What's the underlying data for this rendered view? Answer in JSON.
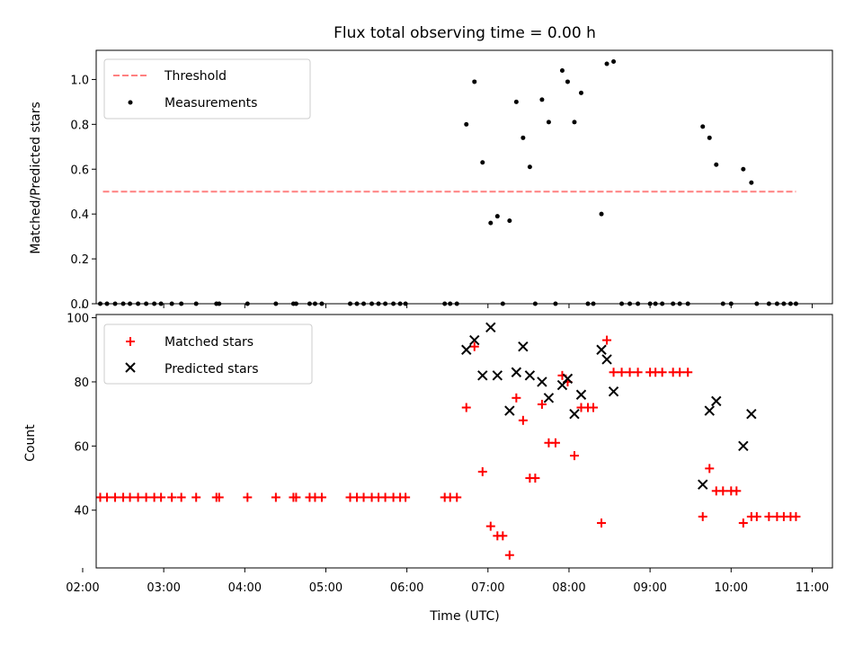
{
  "chart_data": [
    {
      "type": "scatter",
      "title": "Flux total observing time = 0.00 h",
      "xlabel": "",
      "ylabel": "Matched/Predicted stars",
      "ylim": [
        0,
        1.13
      ],
      "xlim": [
        "02:10",
        "11:15"
      ],
      "yticks": [
        "0.0",
        "0.2",
        "0.4",
        "0.6",
        "0.8",
        "1.0"
      ],
      "legend_position": "top-left",
      "colors": {
        "threshold": "#ff8080",
        "measurements": "#000000"
      },
      "threshold": {
        "name": "Threshold",
        "value": 0.5,
        "x_start": "02:15",
        "x_end": "10:48"
      },
      "measurements": {
        "name": "Measurements",
        "points": [
          [
            "02:13",
            0
          ],
          [
            "02:18",
            0
          ],
          [
            "02:24",
            0
          ],
          [
            "02:30",
            0
          ],
          [
            "02:35",
            0
          ],
          [
            "02:41",
            0
          ],
          [
            "02:47",
            0
          ],
          [
            "02:53",
            0
          ],
          [
            "02:58",
            0
          ],
          [
            "03:06",
            0
          ],
          [
            "03:13",
            0
          ],
          [
            "03:24",
            0
          ],
          [
            "03:39",
            0
          ],
          [
            "03:41",
            0
          ],
          [
            "04:02",
            0
          ],
          [
            "04:23",
            0
          ],
          [
            "04:36",
            0
          ],
          [
            "04:38",
            0
          ],
          [
            "04:48",
            0
          ],
          [
            "04:52",
            0
          ],
          [
            "04:57",
            0
          ],
          [
            "05:18",
            0
          ],
          [
            "05:23",
            0
          ],
          [
            "05:28",
            0
          ],
          [
            "05:34",
            0
          ],
          [
            "05:39",
            0
          ],
          [
            "05:44",
            0
          ],
          [
            "05:50",
            0
          ],
          [
            "05:55",
            0
          ],
          [
            "05:59",
            0
          ],
          [
            "06:28",
            0
          ],
          [
            "06:32",
            0
          ],
          [
            "06:37",
            0
          ],
          [
            "06:44",
            0.8
          ],
          [
            "06:50",
            0.99
          ],
          [
            "06:56",
            0.63
          ],
          [
            "07:02",
            0.36
          ],
          [
            "07:07",
            0.39
          ],
          [
            "07:11",
            0
          ],
          [
            "07:16",
            0.37
          ],
          [
            "07:21",
            0.9
          ],
          [
            "07:26",
            0.74
          ],
          [
            "07:31",
            0.61
          ],
          [
            "07:35",
            0
          ],
          [
            "07:40",
            0.91
          ],
          [
            "07:45",
            0.81
          ],
          [
            "07:50",
            0
          ],
          [
            "07:55",
            1.04
          ],
          [
            "07:59",
            0.99
          ],
          [
            "08:04",
            0.81
          ],
          [
            "08:09",
            0.94
          ],
          [
            "08:14",
            0
          ],
          [
            "08:18",
            0
          ],
          [
            "08:24",
            0.4
          ],
          [
            "08:28",
            1.07
          ],
          [
            "08:33",
            1.08
          ],
          [
            "08:39",
            0
          ],
          [
            "08:45",
            0
          ],
          [
            "08:51",
            0
          ],
          [
            "09:00",
            0
          ],
          [
            "09:04",
            0
          ],
          [
            "09:09",
            0
          ],
          [
            "09:17",
            0
          ],
          [
            "09:22",
            0
          ],
          [
            "09:28",
            0
          ],
          [
            "09:39",
            0.79
          ],
          [
            "09:44",
            0.74
          ],
          [
            "09:49",
            0.62
          ],
          [
            "09:54",
            0
          ],
          [
            "10:00",
            0
          ],
          [
            "10:09",
            0.6
          ],
          [
            "10:15",
            0.54
          ],
          [
            "10:19",
            0
          ],
          [
            "10:28",
            0
          ],
          [
            "10:34",
            0
          ],
          [
            "10:39",
            0
          ],
          [
            "10:44",
            0
          ],
          [
            "10:48",
            0
          ]
        ]
      }
    },
    {
      "type": "scatter",
      "title": "",
      "xlabel": "Time (UTC)",
      "ylabel": "Count",
      "ylim": [
        22,
        101
      ],
      "xlim": [
        "02:10",
        "11:15"
      ],
      "xticks": [
        "02:00",
        "03:00",
        "04:00",
        "05:00",
        "06:00",
        "07:00",
        "08:00",
        "09:00",
        "10:00",
        "11:00"
      ],
      "yticks": [
        "40",
        "60",
        "80",
        "100"
      ],
      "legend_position": "top-left",
      "colors": {
        "matched": "#ff0000",
        "predicted": "#000000"
      },
      "series": [
        {
          "name": "Matched stars",
          "points": [
            [
              "02:13",
              44
            ],
            [
              "02:18",
              44
            ],
            [
              "02:24",
              44
            ],
            [
              "02:30",
              44
            ],
            [
              "02:35",
              44
            ],
            [
              "02:41",
              44
            ],
            [
              "02:47",
              44
            ],
            [
              "02:53",
              44
            ],
            [
              "02:58",
              44
            ],
            [
              "03:06",
              44
            ],
            [
              "03:13",
              44
            ],
            [
              "03:24",
              44
            ],
            [
              "03:39",
              44
            ],
            [
              "03:41",
              44
            ],
            [
              "04:02",
              44
            ],
            [
              "04:23",
              44
            ],
            [
              "04:36",
              44
            ],
            [
              "04:38",
              44
            ],
            [
              "04:48",
              44
            ],
            [
              "04:52",
              44
            ],
            [
              "04:57",
              44
            ],
            [
              "05:18",
              44
            ],
            [
              "05:23",
              44
            ],
            [
              "05:28",
              44
            ],
            [
              "05:34",
              44
            ],
            [
              "05:39",
              44
            ],
            [
              "05:44",
              44
            ],
            [
              "05:50",
              44
            ],
            [
              "05:55",
              44
            ],
            [
              "05:59",
              44
            ],
            [
              "06:28",
              44
            ],
            [
              "06:32",
              44
            ],
            [
              "06:37",
              44
            ],
            [
              "06:44",
              72
            ],
            [
              "06:50",
              91
            ],
            [
              "06:56",
              52
            ],
            [
              "07:02",
              35
            ],
            [
              "07:07",
              32
            ],
            [
              "07:11",
              32
            ],
            [
              "07:16",
              26
            ],
            [
              "07:21",
              75
            ],
            [
              "07:26",
              68
            ],
            [
              "07:31",
              50
            ],
            [
              "07:35",
              50
            ],
            [
              "07:40",
              73
            ],
            [
              "07:45",
              61
            ],
            [
              "07:50",
              61
            ],
            [
              "07:55",
              82
            ],
            [
              "07:59",
              80
            ],
            [
              "08:04",
              57
            ],
            [
              "08:09",
              72
            ],
            [
              "08:14",
              72
            ],
            [
              "08:18",
              72
            ],
            [
              "08:24",
              36
            ],
            [
              "08:28",
              93
            ],
            [
              "08:33",
              83
            ],
            [
              "08:39",
              83
            ],
            [
              "08:45",
              83
            ],
            [
              "08:51",
              83
            ],
            [
              "09:00",
              83
            ],
            [
              "09:04",
              83
            ],
            [
              "09:09",
              83
            ],
            [
              "09:17",
              83
            ],
            [
              "09:22",
              83
            ],
            [
              "09:28",
              83
            ],
            [
              "09:39",
              38
            ],
            [
              "09:44",
              53
            ],
            [
              "09:49",
              46
            ],
            [
              "09:54",
              46
            ],
            [
              "10:00",
              46
            ],
            [
              "10:04",
              46
            ],
            [
              "10:09",
              36
            ],
            [
              "10:15",
              38
            ],
            [
              "10:19",
              38
            ],
            [
              "10:28",
              38
            ],
            [
              "10:34",
              38
            ],
            [
              "10:39",
              38
            ],
            [
              "10:44",
              38
            ],
            [
              "10:48",
              38
            ]
          ]
        },
        {
          "name": "Predicted stars",
          "points": [
            [
              "06:44",
              90
            ],
            [
              "06:50",
              93
            ],
            [
              "06:56",
              82
            ],
            [
              "07:02",
              97
            ],
            [
              "07:07",
              82
            ],
            [
              "07:16",
              71
            ],
            [
              "07:21",
              83
            ],
            [
              "07:26",
              91
            ],
            [
              "07:31",
              82
            ],
            [
              "07:40",
              80
            ],
            [
              "07:45",
              75
            ],
            [
              "07:55",
              79
            ],
            [
              "07:59",
              81
            ],
            [
              "08:04",
              70
            ],
            [
              "08:09",
              76
            ],
            [
              "08:24",
              90
            ],
            [
              "08:28",
              87
            ],
            [
              "08:33",
              77
            ],
            [
              "09:39",
              48
            ],
            [
              "09:44",
              71
            ],
            [
              "09:49",
              74
            ],
            [
              "10:09",
              60
            ],
            [
              "10:15",
              70
            ]
          ]
        }
      ]
    }
  ]
}
